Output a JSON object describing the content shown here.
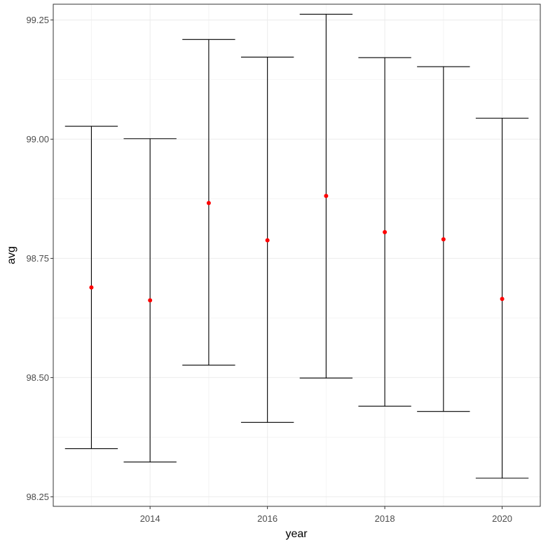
{
  "chart_data": {
    "type": "scatter",
    "xlabel": "year",
    "ylabel": "avg",
    "xlim": [
      2012.35,
      2020.65
    ],
    "ylim": [
      98.23,
      99.283
    ],
    "x_ticks": [
      2014,
      2016,
      2018,
      2020
    ],
    "x_tick_labels": [
      "2014",
      "2016",
      "2018",
      "2020"
    ],
    "y_ticks": [
      98.25,
      98.5,
      98.75,
      99.0,
      99.25
    ],
    "y_tick_labels": [
      "98.25",
      "98.50",
      "98.75",
      "99.00",
      "99.25"
    ],
    "grid": true,
    "point_color": "#ff0000",
    "errorbar_color": "#000000",
    "series": [
      {
        "x": [
          2013,
          2014,
          2015,
          2016,
          2017,
          2018,
          2019,
          2020
        ],
        "y": [
          98.689,
          98.662,
          98.866,
          98.788,
          98.881,
          98.805,
          98.79,
          98.665
        ],
        "ymin": [
          98.351,
          98.323,
          98.526,
          98.406,
          98.499,
          98.44,
          98.429,
          98.289
        ],
        "ymax": [
          99.027,
          99.001,
          99.209,
          99.172,
          99.262,
          99.171,
          99.152,
          99.044
        ]
      }
    ]
  }
}
